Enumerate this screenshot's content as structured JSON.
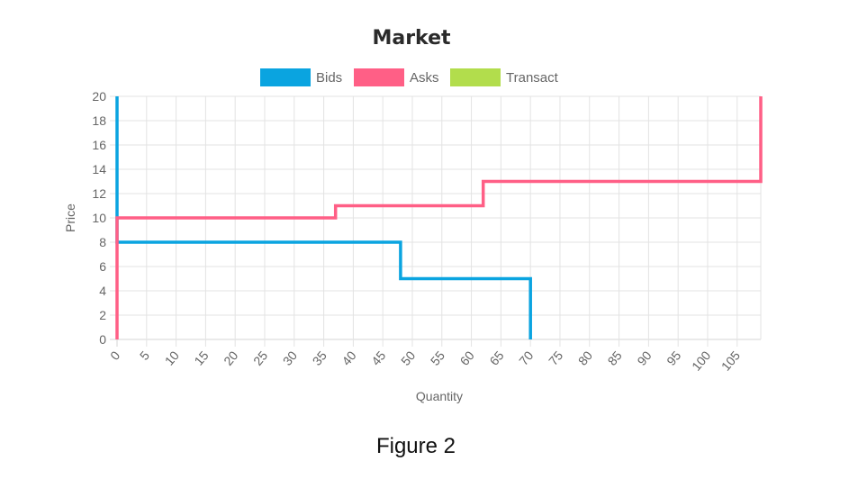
{
  "caption": "Figure 2",
  "chart_data": {
    "type": "line",
    "title": "Market",
    "xlabel": "Quantity",
    "ylabel": "Price",
    "xlim": [
      0,
      109
    ],
    "ylim": [
      0,
      20
    ],
    "x_ticks": [
      0,
      5,
      10,
      15,
      20,
      25,
      30,
      35,
      40,
      45,
      50,
      55,
      60,
      65,
      70,
      75,
      80,
      85,
      90,
      95,
      100,
      105
    ],
    "y_ticks": [
      0,
      2,
      4,
      6,
      8,
      10,
      12,
      14,
      16,
      18,
      20
    ],
    "grid": true,
    "legend_position": "top-center",
    "series": [
      {
        "name": "Bids",
        "color": "#0aa4e0",
        "points": [
          [
            0,
            20
          ],
          [
            0,
            8
          ],
          [
            48,
            8
          ],
          [
            48,
            5
          ],
          [
            70,
            5
          ],
          [
            70,
            0
          ]
        ]
      },
      {
        "name": "Asks",
        "color": "#ff5f86",
        "points": [
          [
            0,
            0
          ],
          [
            0,
            10
          ],
          [
            37,
            10
          ],
          [
            37,
            11
          ],
          [
            62,
            11
          ],
          [
            62,
            13
          ],
          [
            109,
            13
          ],
          [
            109,
            20
          ]
        ]
      },
      {
        "name": "Transact",
        "color": "#b2dd4c",
        "points": []
      }
    ]
  }
}
